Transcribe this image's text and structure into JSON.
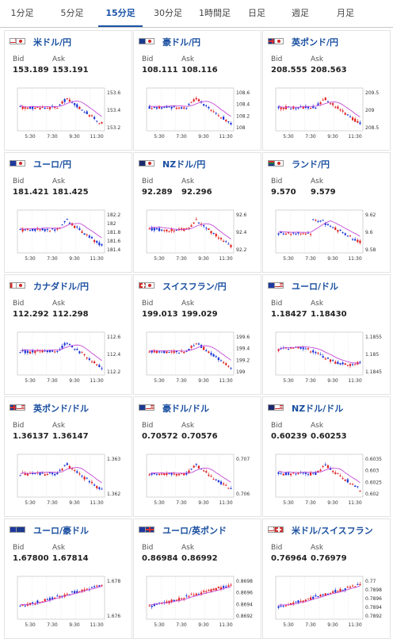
{
  "tabs": [
    {
      "label": "1分足",
      "active": false
    },
    {
      "label": "5分足",
      "active": false
    },
    {
      "label": "15分足",
      "active": true
    },
    {
      "label": "30分足",
      "active": false
    },
    {
      "label": "1時間足",
      "active": false
    },
    {
      "label": "日足",
      "active": false
    },
    {
      "label": "週足",
      "active": false
    },
    {
      "label": "月足",
      "active": false
    }
  ],
  "labels": {
    "bid": "Bid",
    "ask": "Ask"
  },
  "x_ticks": [
    "5:30",
    "7:30",
    "9:30",
    "11:30"
  ],
  "colors": {
    "tab_active": "#1a53a6",
    "pair_link": "#1a4fa0",
    "candle_up": "#1a35d6",
    "candle_down": "#e01e1e",
    "ma_line": "#c34ad6"
  },
  "cards": [
    {
      "pair": "米ドル/円",
      "flags": [
        "us",
        "jp"
      ],
      "bid": "153.189",
      "ask": "153.191",
      "yticks": [
        "153.6",
        "153.4",
        "153.2"
      ],
      "trend": "drop"
    },
    {
      "pair": "豪ドル/円",
      "flags": [
        "au",
        "jp"
      ],
      "bid": "108.111",
      "ask": "108.116",
      "yticks": [
        "108.6",
        "108.4",
        "108.2",
        "108"
      ],
      "trend": "drop"
    },
    {
      "pair": "英ポンド/円",
      "flags": [
        "gb",
        "jp"
      ],
      "bid": "208.555",
      "ask": "208.563",
      "yticks": [
        "209.5",
        "209",
        "208.5"
      ],
      "trend": "drop"
    },
    {
      "pair": "ユーロ/円",
      "flags": [
        "eu",
        "jp"
      ],
      "bid": "181.421",
      "ask": "181.425",
      "yticks": [
        "182.2",
        "182",
        "181.8",
        "181.6",
        "181.4"
      ],
      "trend": "drop"
    },
    {
      "pair": "NZドル/円",
      "flags": [
        "nz",
        "jp"
      ],
      "bid": "92.289",
      "ask": "92.296",
      "yticks": [
        "92.6",
        "92.4",
        "92.2"
      ],
      "trend": "drop"
    },
    {
      "pair": "ランド/円",
      "flags": [
        "za",
        "jp"
      ],
      "bid": "9.570",
      "ask": "9.579",
      "yticks": [
        "9.62",
        "9.6",
        "9.58"
      ],
      "trend": "spike"
    },
    {
      "pair": "カナダドル/円",
      "flags": [
        "ca",
        "jp"
      ],
      "bid": "112.292",
      "ask": "112.298",
      "yticks": [
        "112.6",
        "112.4",
        "112.2"
      ],
      "trend": "drop"
    },
    {
      "pair": "スイスフラン/円",
      "flags": [
        "ch",
        "jp"
      ],
      "bid": "199.013",
      "ask": "199.029",
      "yticks": [
        "199.6",
        "199.4",
        "199.2",
        "199"
      ],
      "trend": "drop"
    },
    {
      "pair": "ユーロ/ドル",
      "flags": [
        "eu",
        "us"
      ],
      "bid": "1.18427",
      "ask": "1.18430",
      "yticks": [
        "1.1855",
        "1.185",
        "1.1845"
      ],
      "trend": "wave"
    },
    {
      "pair": "英ポンド/ドル",
      "flags": [
        "gb",
        "us"
      ],
      "bid": "1.36137",
      "ask": "1.36147",
      "yticks": [
        "1.363",
        "1.362"
      ],
      "trend": "drop"
    },
    {
      "pair": "豪ドル/ドル",
      "flags": [
        "au",
        "us"
      ],
      "bid": "0.70572",
      "ask": "0.70576",
      "yticks": [
        "0.707",
        "0.706"
      ],
      "trend": "drop"
    },
    {
      "pair": "NZドル/ドル",
      "flags": [
        "nz",
        "us"
      ],
      "bid": "0.60239",
      "ask": "0.60253",
      "yticks": [
        "0.6035",
        "0.603",
        "0.6025",
        "0.602"
      ],
      "trend": "drop"
    },
    {
      "pair": "ユーロ/豪ドル",
      "flags": [
        "eu",
        "au"
      ],
      "bid": "1.67800",
      "ask": "1.67814",
      "yticks": [
        "1.678",
        "1.676"
      ],
      "trend": "rise"
    },
    {
      "pair": "ユーロ/英ポンド",
      "flags": [
        "eu",
        "gb"
      ],
      "bid": "0.86984",
      "ask": "0.86992",
      "yticks": [
        "0.8698",
        "0.8696",
        "0.8694",
        "0.8692"
      ],
      "trend": "rise"
    },
    {
      "pair": "米ドル/スイスフラン",
      "flags": [
        "us",
        "ch"
      ],
      "bid": "0.76964",
      "ask": "0.76979",
      "yticks": [
        "0.77",
        "0.7898",
        "0.7896",
        "0.7894",
        "0.7892"
      ],
      "trend": "rise"
    }
  ]
}
